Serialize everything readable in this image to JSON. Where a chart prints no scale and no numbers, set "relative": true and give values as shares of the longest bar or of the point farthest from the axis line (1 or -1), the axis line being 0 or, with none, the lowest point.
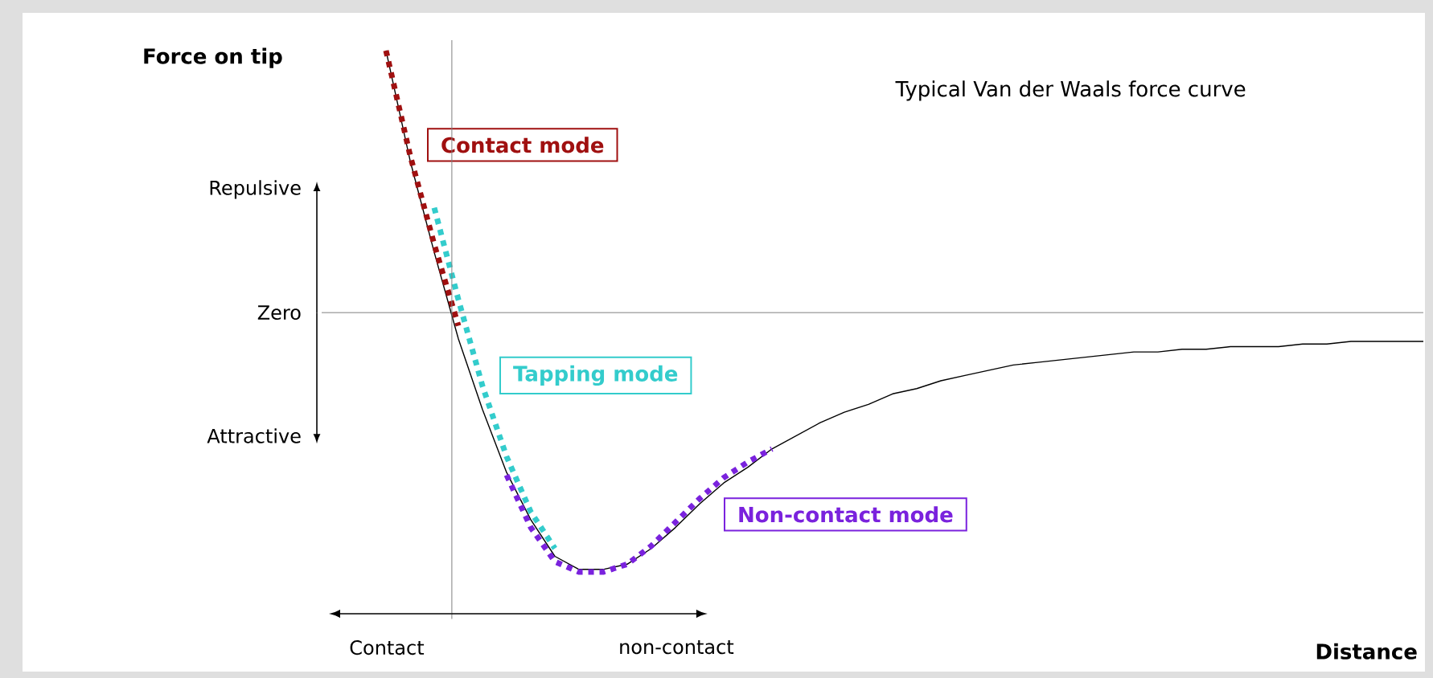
{
  "chart_data": {
    "type": "line",
    "relative": true,
    "title": "Typical Van der Waals force curve",
    "xlabel": "Distance",
    "ylabel": "Force on tip",
    "categories": [
      null,
      null,
      null,
      null,
      null,
      null,
      null,
      null,
      null,
      null,
      null,
      null,
      null,
      null,
      null,
      null,
      null,
      null,
      null,
      null,
      null,
      null,
      null,
      null,
      null,
      null,
      null,
      null,
      null,
      null,
      null,
      null,
      null,
      null,
      null,
      null,
      null,
      null,
      null,
      null,
      null,
      null,
      null,
      null
    ],
    "series": [
      {
        "color": "#000000",
        "line_style": "solid",
        "values": [
          1.0,
          0.58,
          0.23,
          -0.1,
          -0.37,
          -0.61,
          -0.79,
          -0.93,
          -0.98,
          -0.98,
          -0.96,
          -0.9,
          -0.82,
          -0.73,
          -0.65,
          -0.59,
          -0.52,
          -0.47,
          -0.42,
          -0.38,
          -0.35,
          -0.31,
          -0.29,
          -0.26,
          -0.24,
          -0.22,
          -0.2,
          -0.19,
          -0.18,
          -0.17,
          -0.16,
          -0.15,
          -0.15,
          -0.14,
          -0.14,
          -0.13,
          -0.13,
          -0.13,
          -0.12,
          -0.12,
          -0.11,
          -0.11,
          -0.11,
          -0.11
        ]
      },
      {
        "name": "Contact mode",
        "color": "#a01010",
        "line_style": "dotted",
        "values": [
          1.0,
          0.6,
          0.26,
          -0.05,
          null,
          null,
          null,
          null,
          null,
          null,
          null,
          null,
          null,
          null,
          null,
          null,
          null,
          null,
          null,
          null,
          null,
          null,
          null,
          null,
          null,
          null,
          null,
          null,
          null,
          null,
          null,
          null,
          null,
          null,
          null,
          null,
          null,
          null,
          null,
          null,
          null,
          null,
          null,
          null
        ]
      },
      {
        "name": "Tapping mode",
        "color": "#33cccc",
        "line_style": "dotted",
        "values": [
          null,
          null,
          0.4,
          0.05,
          -0.28,
          -0.55,
          -0.76,
          -0.9,
          null,
          null,
          null,
          null,
          null,
          null,
          null,
          null,
          null,
          null,
          null,
          null,
          null,
          null,
          null,
          null,
          null,
          null,
          null,
          null,
          null,
          null,
          null,
          null,
          null,
          null,
          null,
          null,
          null,
          null,
          null,
          null,
          null,
          null,
          null,
          null
        ]
      },
      {
        "name": "Non-contact mode",
        "color": "#7a22dd",
        "line_style": "dotted",
        "values": [
          null,
          null,
          null,
          null,
          null,
          -0.62,
          -0.82,
          -0.95,
          -0.99,
          -0.99,
          -0.96,
          -0.89,
          -0.8,
          -0.71,
          -0.63,
          -0.57,
          -0.52,
          null,
          null,
          null,
          null,
          null,
          null,
          null,
          null,
          null,
          null,
          null,
          null,
          null,
          null,
          null,
          null,
          null,
          null,
          null,
          null,
          null,
          null,
          null,
          null,
          null,
          null,
          null
        ]
      }
    ],
    "ref_lines": [
      {
        "axis": "y",
        "value": 0,
        "label": "Zero",
        "color": "#808080"
      }
    ],
    "annotations": [
      "Repulsive",
      "Attractive",
      "Contact",
      "non-contact"
    ]
  }
}
